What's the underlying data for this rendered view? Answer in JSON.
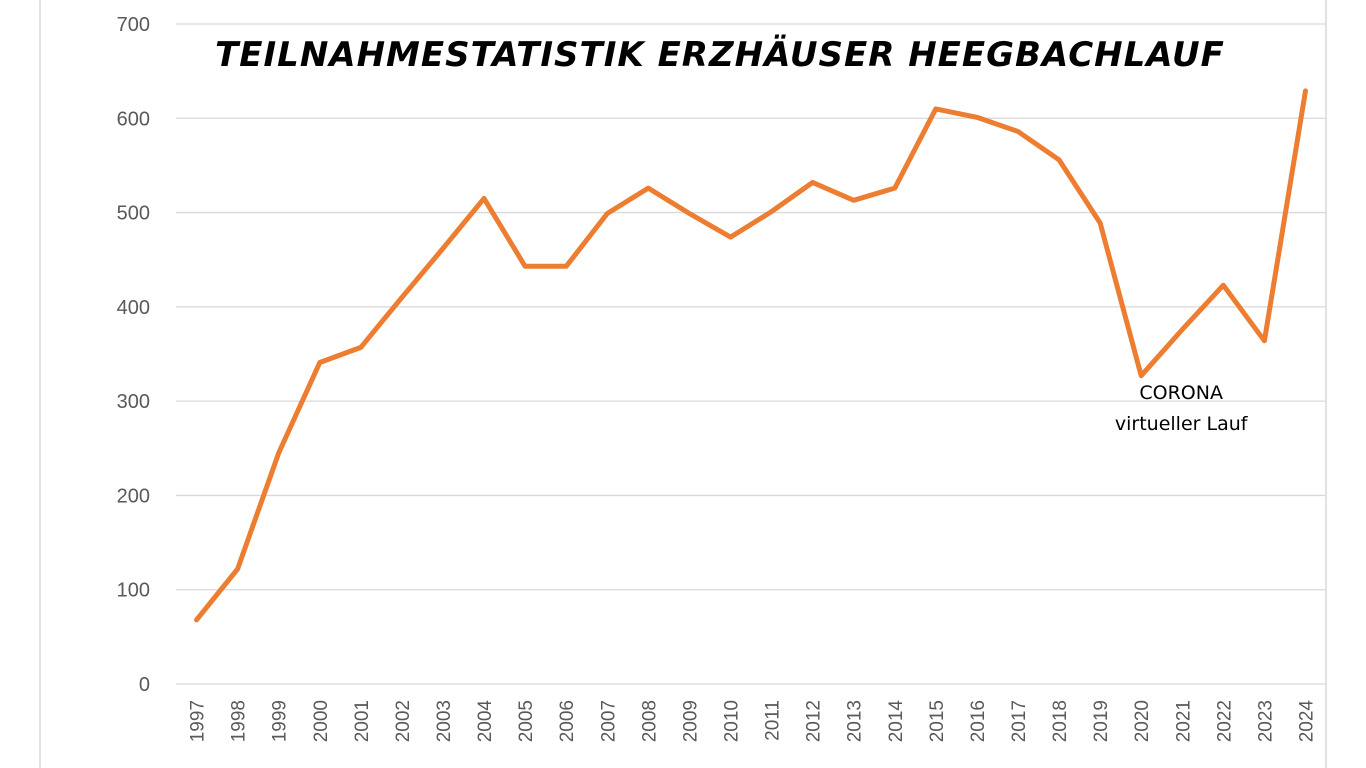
{
  "chart_data": {
    "type": "line",
    "title": "TEILNAHMESTATISTIK ERZHÄUSER HEEGBACHLAUF",
    "xlabel": "",
    "ylabel": "",
    "ylim": [
      0,
      700
    ],
    "yticks": [
      "0",
      "100",
      "200",
      "300",
      "400",
      "500",
      "600",
      "700"
    ],
    "grid": true,
    "legend": "none",
    "categories": [
      "1997",
      "1998",
      "1999",
      "2000",
      "2001",
      "2002",
      "2003",
      "2004",
      "2005",
      "2006",
      "2007",
      "2008",
      "2009",
      "2010",
      "2011",
      "2012",
      "2013",
      "2014",
      "2015",
      "2016",
      "2017",
      "2018",
      "2019",
      "2020",
      "2021",
      "2022",
      "2023",
      "2024"
    ],
    "series": [
      {
        "color": "#ed7d31",
        "values": [
          68,
          122,
          245,
          341,
          357,
          410,
          462,
          515,
          443,
          443,
          499,
          526,
          499,
          474,
          501,
          532,
          513,
          526,
          610,
          601,
          586,
          556,
          489,
          327,
          376,
          423,
          364,
          629
        ]
      }
    ],
    "annotations": [
      {
        "x": "2020",
        "lines": [
          "CORONA",
          "virtueller Lauf"
        ]
      }
    ]
  }
}
